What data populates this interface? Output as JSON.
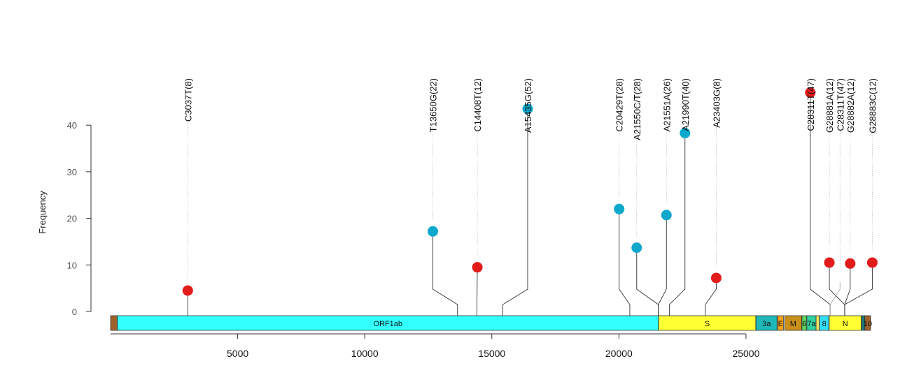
{
  "chart_data": {
    "type": "lollipop",
    "ylabel": "Frequency",
    "xlim": [
      0,
      29903
    ],
    "ylim": [
      0,
      45
    ],
    "y_ticks": [
      0,
      10,
      20,
      30,
      40
    ],
    "x_ticks": [
      5000,
      10000,
      15000,
      20000,
      25000
    ],
    "colors": {
      "blue": "#0ea8cc",
      "red": "#e21b1b"
    },
    "genes": [
      {
        "name": "",
        "start": 1,
        "end": 265,
        "color": "#a0622b"
      },
      {
        "name": "ORF1ab",
        "start": 266,
        "end": 21555,
        "color": "#33ffff"
      },
      {
        "name": "S",
        "start": 21563,
        "end": 25384,
        "color": "#ffff33"
      },
      {
        "name": "3a",
        "start": 25393,
        "end": 26220,
        "color": "#1fb8b8"
      },
      {
        "name": "E",
        "start": 26245,
        "end": 26472,
        "color": "#f2a31b"
      },
      {
        "name": "M",
        "start": 26523,
        "end": 27191,
        "color": "#c8901a"
      },
      {
        "name": "6",
        "start": 27202,
        "end": 27387,
        "color": "#5fd35f"
      },
      {
        "name": "7a",
        "start": 27394,
        "end": 27759,
        "color": "#2fd0a0"
      },
      {
        "name": "",
        "start": 27756,
        "end": 27887,
        "color": "#f0e060"
      },
      {
        "name": "8",
        "start": 27894,
        "end": 28259,
        "color": "#33e0ff"
      },
      {
        "name": "N",
        "start": 28274,
        "end": 29533,
        "color": "#ffff33"
      },
      {
        "name": "",
        "start": 29558,
        "end": 29674,
        "color": "#1a7a7a"
      },
      {
        "name": "10",
        "start": 29674,
        "end": 29903,
        "color": "#a0622b"
      }
    ],
    "mutations": [
      {
        "label": "C3037T(8)",
        "position": 3037,
        "value": 4.5,
        "color": "red",
        "label_x": 3037,
        "head_x": 3037
      },
      {
        "label": "T13650G(22)",
        "position": 13650,
        "value": 17.2,
        "color": "blue",
        "label_x": 12680,
        "head_x": 12680
      },
      {
        "label": "C14408T(12)",
        "position": 14408,
        "value": 9.5,
        "color": "red",
        "label_x": 14430,
        "head_x": 14430
      },
      {
        "label": "A15435G(52)",
        "position": 15435,
        "value": 43.5,
        "color": "blue",
        "label_x": 16410,
        "head_x": 16410
      },
      {
        "label": "C20429T(28)",
        "position": 20429,
        "value": 22.0,
        "color": "blue",
        "label_x": 20010,
        "head_x": 20010
      },
      {
        "label": "A21550C/T(28)",
        "position": 21550,
        "value": 13.7,
        "color": "blue",
        "label_x": 20700,
        "head_x": 20700
      },
      {
        "label": "A21551A(26)",
        "position": 21551,
        "value": 20.7,
        "color": "blue",
        "label_x": 21870,
        "head_x": 21870
      },
      {
        "label": "A21990T(40)",
        "position": 21990,
        "value": 38.3,
        "color": "blue",
        "label_x": 22600,
        "head_x": 22600
      },
      {
        "label": "A23403G(8)",
        "position": 23403,
        "value": 7.2,
        "color": "red",
        "label_x": 23830,
        "head_x": 23830
      },
      {
        "label": "C28311T(47)",
        "position": 28311,
        "value": 47.0,
        "color": "red",
        "label_x": 27530,
        "head_x": 27530
      },
      {
        "label": "G28881A(12)",
        "position": 28881,
        "value": 10.5,
        "color": "red",
        "label_x": 28280,
        "head_x": 28280
      },
      {
        "label": "C28311T(47)",
        "position": 28311,
        "value": 0,
        "color": "none",
        "label_x": 28700,
        "head_x": 28700
      },
      {
        "label": "G28882A(12)",
        "position": 28882,
        "value": 10.3,
        "color": "red",
        "label_x": 29100,
        "head_x": 29100
      },
      {
        "label": "G28883C(12)",
        "position": 28883,
        "value": 10.5,
        "color": "red",
        "label_x": 29970,
        "head_x": 29970
      }
    ]
  }
}
